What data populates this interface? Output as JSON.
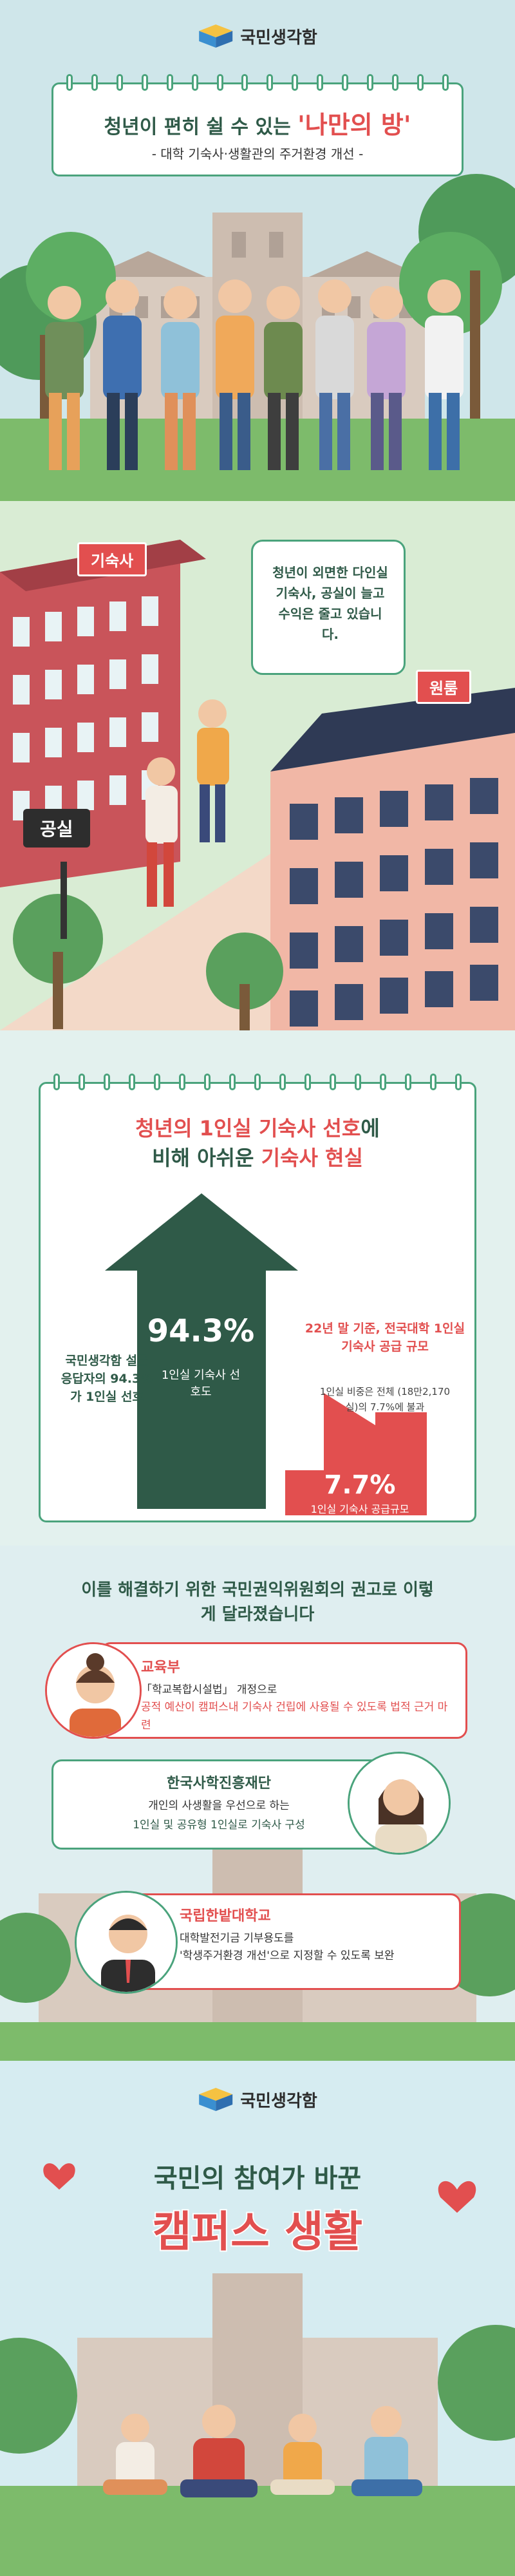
{
  "brand": {
    "name": "국민생각함"
  },
  "panel1": {
    "title_prefix": "청년이 편히 쉴 수 있는",
    "title_highlight": "'나만의 방'",
    "subtitle": "- 대학 기숙사·생활관의 주거환경 개선 -"
  },
  "panel2": {
    "sign_dorm": "기숙사",
    "sign_room": "원룸",
    "sign_vacancy": "공실",
    "bubble": "청년이 외면한 다인실 기숙사, 공실이 늘고 수익은 줄고 있습니다."
  },
  "panel3": {
    "title_line1_a": "청년의 1인실 기숙사 선호",
    "title_line1_b": "에",
    "title_line2_a": "비해 아쉬운 ",
    "title_line2_b": "기숙사 현실",
    "left_text": "국민생각함 설문 응답자의 94.3%가 1인실 선호",
    "big_value": "94.3%",
    "big_label": "1인실 기숙사 선호도",
    "right_title": "22년 말 기준, 전국대학 1인실 기숙사 공급 규모",
    "right_text": "1인실 비중은 전체 (18만2,170실)의 7.7%에 불과",
    "small_value": "7.7%",
    "small_label": "1인실 기숙사 공급규모"
  },
  "panel4": {
    "title": "이를 해결하기 위한 국민권익위원회의 권고로 이렇게 달라졌습니다",
    "items": [
      {
        "org": "교육부",
        "text_a": "「학교복합시설법」 개정으로",
        "text_b": "공적 예산이 캠퍼스내 기숙사 건립에 사용될 수 있도록 법적 근거 마련"
      },
      {
        "org": "한국사학진흥재단",
        "text_a": "개인의 사생활을 우선으로 하는",
        "text_b": "1인실 및 공유형 1인실로 기숙사 구성"
      },
      {
        "org": "국립한밭대학교",
        "text_a": "대학발전기금 기부용도를",
        "text_b": "'학생주거환경 개선'으로 지정할 수 있도록 보완"
      }
    ]
  },
  "panel5": {
    "title_line1": "국민의 참여가 바꾼",
    "title_line2": "캠퍼스 생활"
  },
  "colors": {
    "green": "#4aa37c",
    "red": "#e24f4f",
    "dark_green": "#2f5a48",
    "pink": "#f29a9a"
  }
}
